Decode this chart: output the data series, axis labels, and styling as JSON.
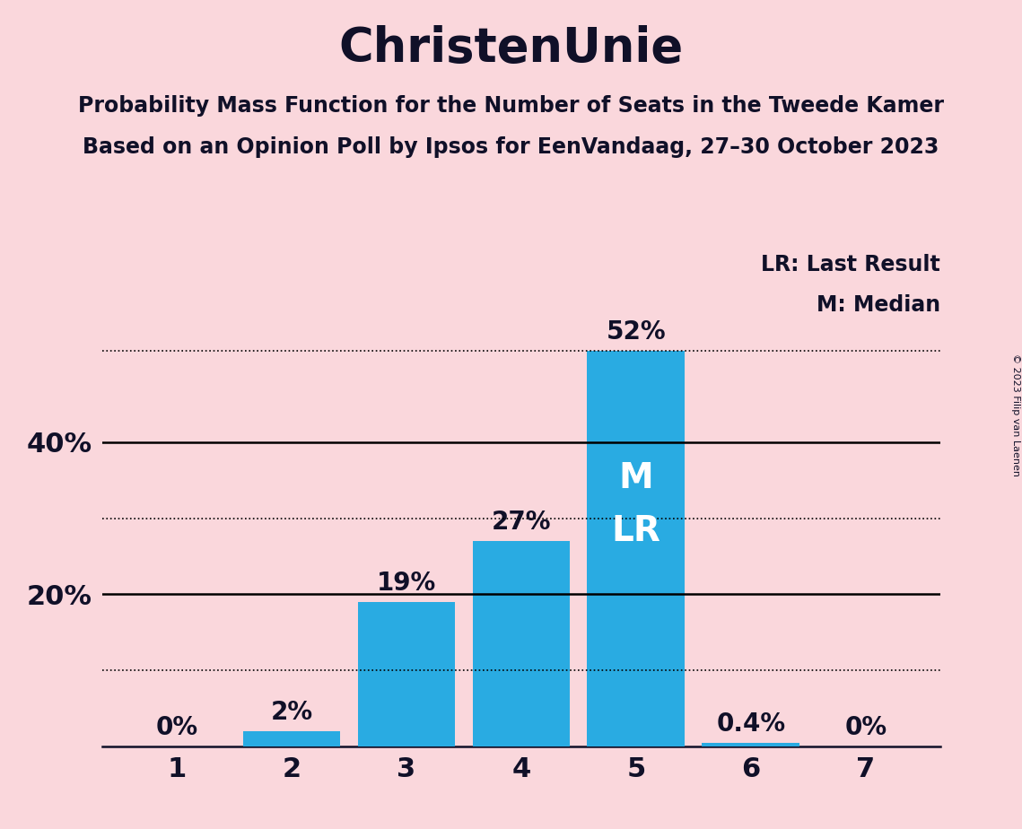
{
  "title": "ChristenUnie",
  "subtitle_line1": "Probability Mass Function for the Number of Seats in the Tweede Kamer",
  "subtitle_line2": "Based on an Opinion Poll by Ipsos for EenVandaag, 27–30 October 2023",
  "copyright": "© 2023 Filip van Laenen",
  "categories": [
    1,
    2,
    3,
    4,
    5,
    6,
    7
  ],
  "values": [
    0.0,
    2.0,
    19.0,
    27.0,
    52.0,
    0.4,
    0.0
  ],
  "labels": [
    "0%",
    "2%",
    "19%",
    "27%",
    "52%",
    "0.4%",
    "0%"
  ],
  "bar_color": "#29ABE2",
  "background_color": "#FAD7DC",
  "text_color": "#101028",
  "ylim": [
    0,
    60
  ],
  "solid_lines": [
    20,
    40
  ],
  "dotted_lines": [
    10,
    30,
    52
  ],
  "median_label": "M",
  "lr_label": "LR",
  "legend_lr": "LR: Last Result",
  "legend_m": "M: Median",
  "label_fontsize": 20,
  "tick_fontsize": 22,
  "title_fontsize": 38,
  "subtitle_fontsize": 17
}
